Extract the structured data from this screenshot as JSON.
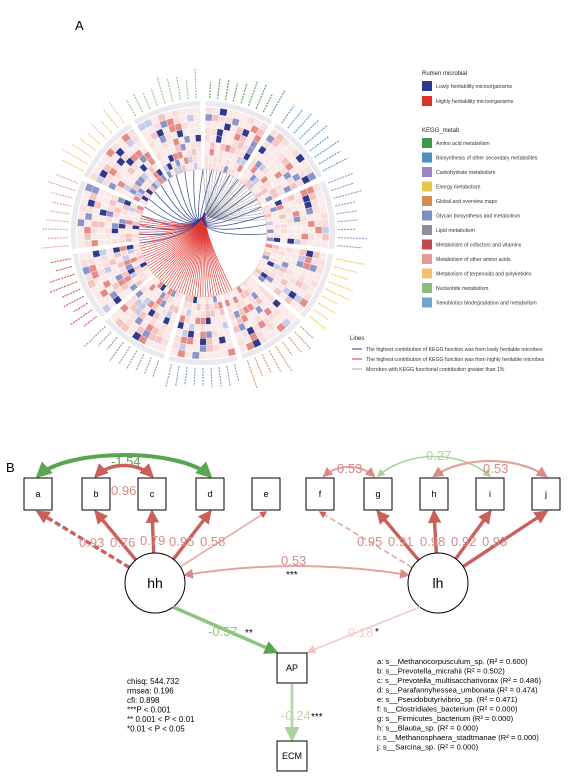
{
  "panel_a": {
    "label": "A",
    "legend": {
      "rumen_title": "Rumen microbial",
      "rumen_items": [
        {
          "label": "Lowly heritability microorganisms",
          "color": "#2f3a8f"
        },
        {
          "label": "Highly heritability microorganisms",
          "color": "#d9322b"
        }
      ],
      "kegg_title": "KEGG_metab",
      "kegg_items": [
        {
          "label": "Amino acid metabolism",
          "color": "#3e9a47"
        },
        {
          "label": "Biosynthesis of other secondary metabolites",
          "color": "#4f8fc0"
        },
        {
          "label": "Carbohydrate metabolism",
          "color": "#9a85c2"
        },
        {
          "label": "Energy metabolism",
          "color": "#e8c64a"
        },
        {
          "label": "Global and overview maps",
          "color": "#d88a56"
        },
        {
          "label": "Glycan biosynthesis and metabolism",
          "color": "#7b8fc3"
        },
        {
          "label": "Lipid metabolism",
          "color": "#8d8d9b"
        },
        {
          "label": "Metabolism of cofactors and vitamins",
          "color": "#c24a4a"
        },
        {
          "label": "Metabolism of other amino acids",
          "color": "#e49a9a"
        },
        {
          "label": "Metabolism of terpenoids and polyketides",
          "color": "#f0c070"
        },
        {
          "label": "Nucleotide metabolism",
          "color": "#8cbd7c"
        },
        {
          "label": "Xenobiotics biodegradation and metabolism",
          "color": "#6ea5cf"
        }
      ],
      "lines_title": "Lines",
      "lines_items": [
        {
          "label": "The highest contribution of KEGG function was from lowly heritable microbes",
          "color": "#2f3a8f"
        },
        {
          "label": "The highest contribution of KEGG function was from highly heritable microbes",
          "color": "#d9322b"
        },
        {
          "label": "Microbes with KEGG functional contribution greater than 1%",
          "color": "#aaaaaa"
        }
      ]
    }
  },
  "panel_b": {
    "label": "B",
    "observed": [
      "a",
      "b",
      "c",
      "d",
      "e",
      "f",
      "g",
      "h",
      "i",
      "j"
    ],
    "latent": [
      "hh",
      "lh"
    ],
    "outcomes": [
      "AP",
      "ECM"
    ],
    "loadings_hh": [
      "0.93",
      "0.76",
      "0.79",
      "0.95",
      "0.58"
    ],
    "loadings_lh": [
      "0.95",
      "0.91",
      "0.98",
      "0.92",
      "0.93"
    ],
    "covariances": {
      "a_d": "-1.54",
      "b_c": "0.96",
      "f_g": "0.53",
      "g_i": "0.27",
      "h_j": "0.53",
      "hh_lh": "0.53",
      "hh_lh_sig": "***"
    },
    "paths": {
      "hh_ap": "-0.57",
      "hh_ap_sig": "**",
      "lh_ap": "0.18",
      "lh_ap_sig": "*",
      "ap_ecm": "-0.24",
      "ap_ecm_sig": "***"
    },
    "fit_stats": [
      "chisq: 544.732",
      "rmsea: 0.196",
      "cfi: 0.898",
      "***P < 0.001",
      "** 0.001 < P < 0.01",
      "*0.01 < P < 0.05"
    ],
    "key": [
      {
        "id": "a",
        "name": "s__Methanocorpusculum_sp.",
        "r2": "0.600"
      },
      {
        "id": "b",
        "name": "s__Prevotella_micrahii",
        "r2": "0.502"
      },
      {
        "id": "c",
        "name": "s__Prevotella_multisaccharivorax",
        "r2": "0.486"
      },
      {
        "id": "d",
        "name": "s__Parafannyhessea_umbonata",
        "r2": "0.474"
      },
      {
        "id": "e",
        "name": "s__Pseudobutyrivibrio_sp.",
        "r2": "0.471"
      },
      {
        "id": "f",
        "name": "s__Clostridiales_bacterium",
        "r2": "0.000"
      },
      {
        "id": "g",
        "name": "s__Firmicutes_bacterium",
        "r2": "0.000"
      },
      {
        "id": "h",
        "name": "s__Blautia_sp.",
        "r2": "0.000"
      },
      {
        "id": "i",
        "name": "s__Methanosphaera_stadtmanae",
        "r2": "0.000"
      },
      {
        "id": "j",
        "name": "s__Sarcina_sp.",
        "r2": "0.000"
      }
    ],
    "colors": {
      "positive": "#d98a86",
      "negative": "#7fbf6a",
      "positive_strong": "#c9605c",
      "negative_strong": "#5aa551"
    }
  }
}
